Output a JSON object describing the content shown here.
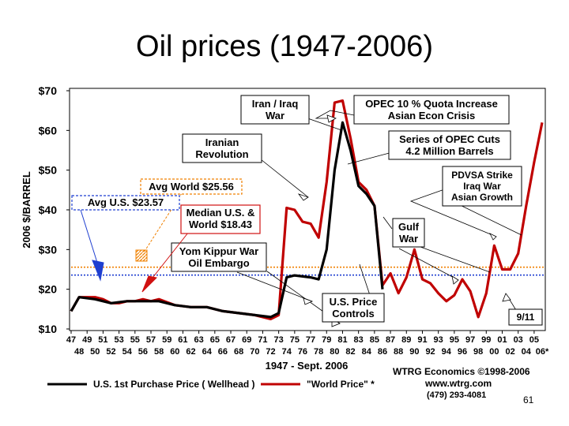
{
  "slide": {
    "title": "Oil prices (1947-2006)",
    "page_number": "61"
  },
  "chart_data": {
    "type": "line",
    "title": "Oil prices (1947-2006)",
    "ylabel": "2006 $/BARREL",
    "xlabel": "1947 - Sept. 2006",
    "ylim": [
      10,
      70
    ],
    "xlim": [
      1947,
      2006
    ],
    "y_ticks": [
      "$10",
      "$20",
      "$30",
      "$40",
      "$50",
      "$60",
      "$70"
    ],
    "y_tick_values": [
      10,
      20,
      30,
      40,
      50,
      60,
      70
    ],
    "x_ticks_row1": [
      "47",
      "49",
      "51",
      "53",
      "55",
      "57",
      "59",
      "61",
      "63",
      "65",
      "67",
      "69",
      "71",
      "73",
      "75",
      "77",
      "79",
      "81",
      "83",
      "85",
      "87",
      "89",
      "91",
      "93",
      "95",
      "97",
      "99",
      "01",
      "03",
      "05"
    ],
    "x_ticks_row2": [
      "48",
      "50",
      "52",
      "54",
      "56",
      "58",
      "60",
      "62",
      "64",
      "66",
      "68",
      "70",
      "72",
      "74",
      "76",
      "78",
      "80",
      "82",
      "84",
      "86",
      "88",
      "90",
      "92",
      "94",
      "96",
      "98",
      "00",
      "02",
      "04",
      "06*"
    ],
    "grid": false,
    "legend_position": "bottom",
    "series": [
      {
        "name": "U.S. 1st Purchase Price ( Wellhead )",
        "color": "#000000",
        "x": [
          1947,
          1948,
          1950,
          1952,
          1954,
          1956,
          1958,
          1960,
          1962,
          1964,
          1966,
          1968,
          1970,
          1972,
          1973,
          1974,
          1975,
          1977,
          1978,
          1979,
          1980,
          1981,
          1982,
          1983,
          1984,
          1985,
          1986
        ],
        "values": [
          14.5,
          18,
          17.5,
          16.5,
          17,
          17,
          17,
          16,
          15.5,
          15.5,
          14.5,
          14,
          13.5,
          13,
          14,
          23,
          23.5,
          23,
          22.5,
          30,
          50,
          62,
          55,
          46,
          44,
          41,
          20
        ]
      },
      {
        "name": "\"World Price\" *",
        "color": "#c00000",
        "x": [
          1947,
          1948,
          1950,
          1951,
          1952,
          1953,
          1954,
          1955,
          1956,
          1957,
          1958,
          1960,
          1962,
          1964,
          1966,
          1968,
          1970,
          1971,
          1972,
          1973,
          1974,
          1975,
          1976,
          1977,
          1978,
          1979,
          1980,
          1981,
          1982,
          1983,
          1984,
          1985,
          1986,
          1987,
          1988,
          1989,
          1990,
          1991,
          1992,
          1993,
          1994,
          1995,
          1996,
          1997,
          1998,
          1999,
          2000,
          2001,
          2002,
          2003,
          2004,
          2005,
          2006
        ],
        "values": [
          14.5,
          18,
          18,
          17.5,
          16.5,
          16.5,
          17,
          17,
          17.5,
          17,
          17.5,
          16,
          15.5,
          15.5,
          14.5,
          14,
          13.5,
          13,
          12.5,
          13.5,
          40.5,
          40,
          37,
          36.5,
          33,
          47,
          67,
          67.5,
          58,
          47,
          45,
          41,
          21,
          24,
          19,
          23,
          30,
          22.5,
          21.5,
          19,
          17,
          18.5,
          22.5,
          19.5,
          13,
          19,
          31,
          25,
          25,
          29,
          41,
          52,
          62
        ]
      }
    ],
    "reference_lines": [
      {
        "label": "Avg World $25.56",
        "value": 25.56,
        "color": "#f08000"
      },
      {
        "label": "Avg U.S. $23.57",
        "value": 23.57,
        "color": "#1f3fd0"
      },
      {
        "label": "Median U.S. & World $18.43",
        "value": 18.43,
        "color": "#d01010"
      }
    ],
    "annotations": [
      {
        "lines": [
          "Iran / Iraq",
          "War"
        ]
      },
      {
        "lines": [
          "OPEC 10 % Quota Increase",
          "Asian Econ Crisis"
        ]
      },
      {
        "lines": [
          "Series of OPEC Cuts",
          "4.2 Million Barrels"
        ]
      },
      {
        "lines": [
          "Iranian",
          "Revolution"
        ]
      },
      {
        "lines": [
          "PDVSA Strike",
          "Iraq War",
          "Asian Growth"
        ]
      },
      {
        "lines": [
          "Gulf",
          "War"
        ]
      },
      {
        "lines": [
          "Yom Kippur War",
          "Oil Embargo"
        ]
      },
      {
        "lines": [
          "U.S. Price",
          "Controls"
        ]
      },
      {
        "lines": [
          "9/11"
        ]
      }
    ],
    "credits": [
      "WTRG Economics  ©1998-2006",
      "www.wtrg.com",
      "(479) 293-4081"
    ]
  }
}
